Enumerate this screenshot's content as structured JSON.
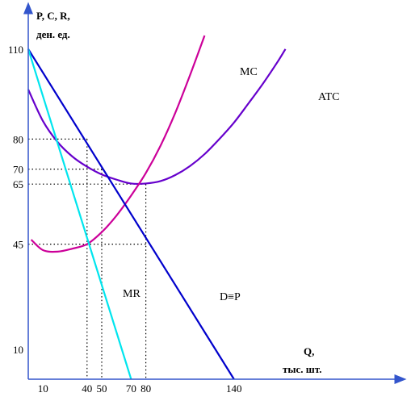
{
  "chart_data": {
    "type": "line",
    "title": "",
    "ylabel_line1": "P, C, R,",
    "ylabel_line2": "ден. ед.",
    "xlabel_line1": "Q,",
    "xlabel_line2": "тыс. шт.",
    "xlim": [
      0,
      180
    ],
    "ylim": [
      0,
      130
    ],
    "x_ticks": [
      10,
      40,
      50,
      70,
      80,
      140
    ],
    "x_tick_labels": [
      "10",
      "40",
      "50",
      "70",
      "80",
      "140"
    ],
    "y_ticks": [
      10,
      45,
      65,
      70,
      80,
      110
    ],
    "y_tick_labels": [
      "10",
      "45",
      "65",
      "70",
      "80",
      "110"
    ],
    "series": [
      {
        "name": "D≡P",
        "color": "#0000cc",
        "x": [
          0,
          140
        ],
        "y": [
          110,
          0
        ]
      },
      {
        "name": "MR",
        "color": "#00e5ee",
        "x": [
          0,
          70
        ],
        "y": [
          110,
          0
        ]
      },
      {
        "name": "MC",
        "color": "#cc0099",
        "x": [
          2,
          10,
          20,
          30,
          40,
          50,
          60,
          70,
          80,
          90,
          100,
          110,
          120
        ],
        "y": [
          46.5,
          43,
          42.5,
          43.5,
          45,
          49,
          54.5,
          61.2,
          68.7,
          77.8,
          88.7,
          101.2,
          114.5
        ]
      },
      {
        "name": "ATC",
        "color": "#6600cc",
        "x": [
          0,
          10,
          20,
          30,
          40,
          50,
          60,
          70,
          80,
          90,
          100,
          110,
          120,
          130,
          140,
          150,
          160,
          170,
          175
        ],
        "y": [
          96.5,
          86,
          79,
          74.2,
          70.8,
          68.2,
          66.5,
          65.2,
          65.2,
          66,
          68,
          71,
          75,
          80,
          85.5,
          92,
          98.7,
          106,
          110
        ]
      }
    ],
    "guides": [
      {
        "from": [
          0,
          80
        ],
        "to": [
          40,
          80
        ],
        "drop_to": [
          40,
          0
        ]
      },
      {
        "from": [
          0,
          70
        ],
        "to": [
          50,
          70
        ],
        "drop_to": [
          50,
          0
        ]
      },
      {
        "from": [
          0,
          65
        ],
        "to": [
          80,
          65
        ],
        "drop_to": [
          80,
          0
        ]
      },
      {
        "from": [
          0,
          45
        ],
        "to": [
          80,
          45
        ]
      }
    ],
    "grid": false,
    "colors": {
      "axis": "#3355cc",
      "guides": "#000000"
    }
  }
}
